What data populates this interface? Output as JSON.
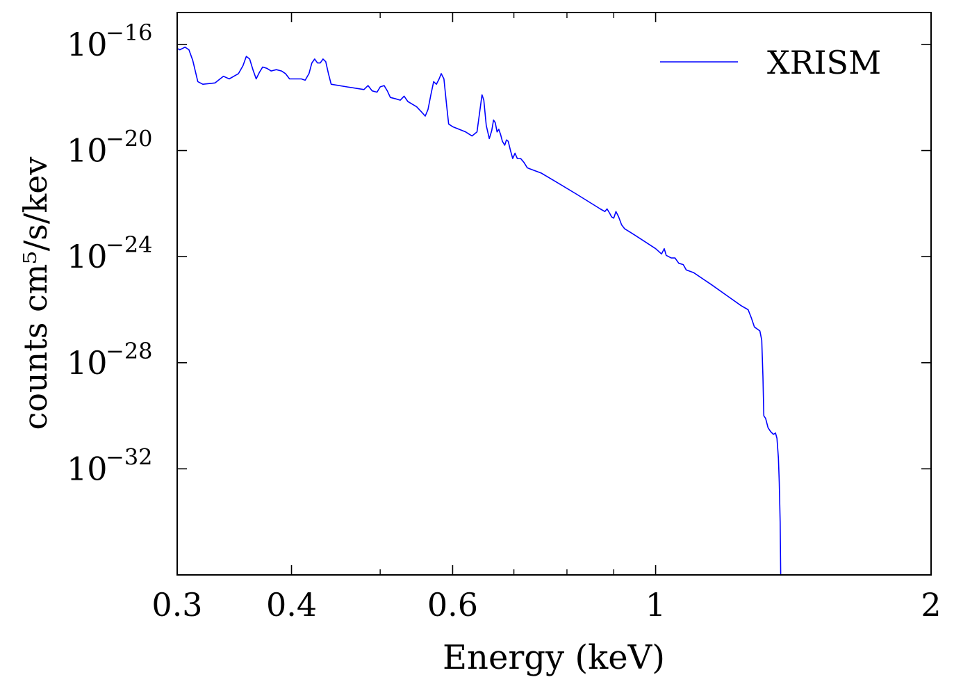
{
  "chart_data": {
    "type": "line",
    "title": "",
    "xlabel": "Energy (keV)",
    "ylabel": "counts cm⁵/s/kev",
    "xscale": "log",
    "yscale": "log",
    "xlim": [
      0.3,
      2.0
    ],
    "ylim": [
      1e-36,
      1.6e-15
    ],
    "grid": false,
    "legend_position": "top-right",
    "xticks": [
      {
        "value": 0.3,
        "label": "0.3"
      },
      {
        "value": 0.4,
        "label": "0.4"
      },
      {
        "value": 0.6,
        "label": "0.6"
      },
      {
        "value": 1.0,
        "label": "1"
      },
      {
        "value": 2.0,
        "label": "2"
      }
    ],
    "yticks": [
      {
        "exponent": -16,
        "base": "10",
        "exp_label": "−16"
      },
      {
        "exponent": -20,
        "base": "10",
        "exp_label": "−20"
      },
      {
        "exponent": -24,
        "base": "10",
        "exp_label": "−24"
      },
      {
        "exponent": -28,
        "base": "10",
        "exp_label": "−28"
      },
      {
        "exponent": -32,
        "base": "10",
        "exp_label": "−32"
      }
    ],
    "series": [
      {
        "name": "XRISM",
        "color": "#0000ff",
        "points": [
          [
            0.3,
            -16.15
          ],
          [
            0.302,
            -16.2
          ],
          [
            0.306,
            -16.1
          ],
          [
            0.309,
            -16.2
          ],
          [
            0.312,
            -16.6
          ],
          [
            0.316,
            -17.4
          ],
          [
            0.32,
            -17.5
          ],
          [
            0.33,
            -17.45
          ],
          [
            0.337,
            -17.2
          ],
          [
            0.342,
            -17.3
          ],
          [
            0.346,
            -17.2
          ],
          [
            0.35,
            -17.1
          ],
          [
            0.354,
            -16.8
          ],
          [
            0.357,
            -16.45
          ],
          [
            0.36,
            -16.55
          ],
          [
            0.363,
            -16.95
          ],
          [
            0.366,
            -17.3
          ],
          [
            0.369,
            -17.05
          ],
          [
            0.372,
            -16.85
          ],
          [
            0.376,
            -16.9
          ],
          [
            0.38,
            -17.0
          ],
          [
            0.385,
            -16.95
          ],
          [
            0.39,
            -17.0
          ],
          [
            0.394,
            -17.1
          ],
          [
            0.398,
            -17.3
          ],
          [
            0.402,
            -17.3
          ],
          [
            0.41,
            -17.3
          ],
          [
            0.414,
            -17.35
          ],
          [
            0.418,
            -17.1
          ],
          [
            0.421,
            -16.7
          ],
          [
            0.424,
            -16.55
          ],
          [
            0.427,
            -16.7
          ],
          [
            0.43,
            -16.7
          ],
          [
            0.433,
            -16.55
          ],
          [
            0.436,
            -16.65
          ],
          [
            0.439,
            -17.1
          ],
          [
            0.442,
            -17.5
          ],
          [
            0.46,
            -17.6
          ],
          [
            0.48,
            -17.7
          ],
          [
            0.485,
            -17.55
          ],
          [
            0.49,
            -17.75
          ],
          [
            0.496,
            -17.8
          ],
          [
            0.5,
            -17.6
          ],
          [
            0.505,
            -17.55
          ],
          [
            0.509,
            -17.75
          ],
          [
            0.513,
            -18.0
          ],
          [
            0.52,
            -18.05
          ],
          [
            0.526,
            -18.1
          ],
          [
            0.531,
            -17.95
          ],
          [
            0.536,
            -18.15
          ],
          [
            0.542,
            -18.25
          ],
          [
            0.548,
            -18.35
          ],
          [
            0.555,
            -18.55
          ],
          [
            0.56,
            -18.7
          ],
          [
            0.564,
            -18.45
          ],
          [
            0.568,
            -17.9
          ],
          [
            0.572,
            -17.4
          ],
          [
            0.576,
            -17.5
          ],
          [
            0.58,
            -17.3
          ],
          [
            0.583,
            -17.1
          ],
          [
            0.587,
            -17.3
          ],
          [
            0.591,
            -18.3
          ],
          [
            0.594,
            -19.0
          ],
          [
            0.6,
            -19.1
          ],
          [
            0.62,
            -19.3
          ],
          [
            0.63,
            -19.45
          ],
          [
            0.638,
            -19.3
          ],
          [
            0.642,
            -18.6
          ],
          [
            0.646,
            -17.9
          ],
          [
            0.649,
            -18.1
          ],
          [
            0.653,
            -19.05
          ],
          [
            0.658,
            -19.55
          ],
          [
            0.662,
            -19.25
          ],
          [
            0.665,
            -18.85
          ],
          [
            0.668,
            -18.95
          ],
          [
            0.671,
            -19.3
          ],
          [
            0.674,
            -19.2
          ],
          [
            0.677,
            -19.4
          ],
          [
            0.68,
            -19.65
          ],
          [
            0.684,
            -19.8
          ],
          [
            0.687,
            -19.6
          ],
          [
            0.69,
            -19.65
          ],
          [
            0.694,
            -20.0
          ],
          [
            0.698,
            -20.3
          ],
          [
            0.702,
            -20.1
          ],
          [
            0.706,
            -20.3
          ],
          [
            0.712,
            -20.3
          ],
          [
            0.718,
            -20.45
          ],
          [
            0.724,
            -20.65
          ],
          [
            0.73,
            -20.7
          ],
          [
            0.75,
            -20.85
          ],
          [
            0.78,
            -21.2
          ],
          [
            0.82,
            -21.65
          ],
          [
            0.87,
            -22.2
          ],
          [
            0.88,
            -22.3
          ],
          [
            0.885,
            -22.2
          ],
          [
            0.892,
            -22.4
          ],
          [
            0.895,
            -22.5
          ],
          [
            0.9,
            -22.55
          ],
          [
            0.905,
            -22.3
          ],
          [
            0.911,
            -22.5
          ],
          [
            0.918,
            -22.8
          ],
          [
            0.925,
            -22.95
          ],
          [
            0.95,
            -23.2
          ],
          [
            1.0,
            -23.7
          ],
          [
            1.015,
            -23.9
          ],
          [
            1.022,
            -23.7
          ],
          [
            1.027,
            -23.95
          ],
          [
            1.04,
            -24.05
          ],
          [
            1.05,
            -24.05
          ],
          [
            1.06,
            -24.25
          ],
          [
            1.072,
            -24.3
          ],
          [
            1.08,
            -24.5
          ],
          [
            1.1,
            -24.6
          ],
          [
            1.15,
            -25.05
          ],
          [
            1.2,
            -25.5
          ],
          [
            1.24,
            -25.85
          ],
          [
            1.262,
            -26.0
          ],
          [
            1.272,
            -26.3
          ],
          [
            1.282,
            -26.65
          ],
          [
            1.3,
            -26.8
          ],
          [
            1.306,
            -27.15
          ],
          [
            1.31,
            -28.5
          ],
          [
            1.313,
            -30.0
          ],
          [
            1.319,
            -30.1
          ],
          [
            1.327,
            -30.45
          ],
          [
            1.336,
            -30.6
          ],
          [
            1.345,
            -30.7
          ],
          [
            1.352,
            -30.65
          ],
          [
            1.357,
            -30.85
          ],
          [
            1.362,
            -31.6
          ],
          [
            1.365,
            -32.5
          ],
          [
            1.368,
            -34.0
          ],
          [
            1.37,
            -36.0
          ]
        ]
      }
    ]
  }
}
